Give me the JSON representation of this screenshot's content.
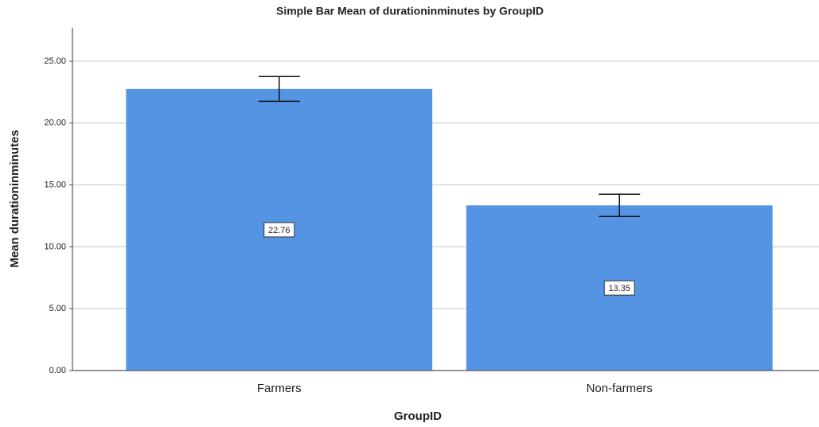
{
  "chart_data": {
    "type": "bar",
    "title": "Simple Bar Mean of durationinminutes by GroupID",
    "x_label": "GroupID",
    "y_label": "Mean durationinminutes",
    "categories": [
      "Farmers",
      "Non-farmers"
    ],
    "values": [
      22.76,
      13.35
    ],
    "errors": [
      1.0,
      0.9
    ],
    "color": "#5594e3",
    "ylim": [
      0,
      27.7
    ],
    "yticks": [
      {
        "value": 0,
        "label": "0.00"
      },
      {
        "value": 5,
        "label": "5.00"
      },
      {
        "value": 10,
        "label": "10.00"
      },
      {
        "value": 15,
        "label": "15.00"
      },
      {
        "value": 20,
        "label": "20.00"
      },
      {
        "value": 25,
        "label": "25.00"
      }
    ],
    "grid": true
  }
}
